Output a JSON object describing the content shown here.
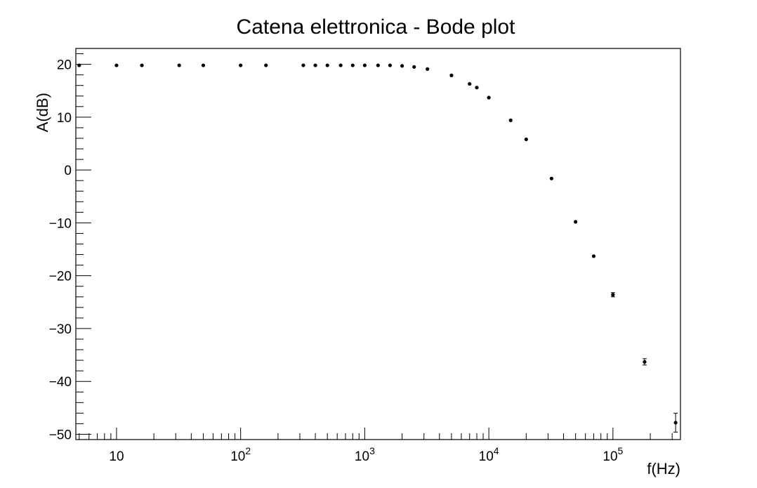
{
  "chart_data": {
    "type": "scatter",
    "title": "Catena elettronica - Bode plot",
    "xlabel": "f(Hz)",
    "ylabel": "A(dB)",
    "xscale": "log",
    "xlim": [
      4.7,
      350000
    ],
    "ylim": [
      -51,
      23
    ],
    "grid": false,
    "legend": "none",
    "x_tick_labels": [
      {
        "value": 10,
        "base": "10",
        "exp": ""
      },
      {
        "value": 100,
        "base": "10",
        "exp": "2"
      },
      {
        "value": 1000,
        "base": "10",
        "exp": "3"
      },
      {
        "value": 10000,
        "base": "10",
        "exp": "4"
      },
      {
        "value": 100000,
        "base": "10",
        "exp": "5"
      }
    ],
    "y_ticks": [
      20,
      10,
      0,
      -10,
      -20,
      -30,
      -40,
      -50
    ],
    "y_tick_labels": [
      "20",
      "10",
      "0",
      "−10",
      "−20",
      "−30",
      "−40",
      "−50"
    ],
    "series": [
      {
        "x": [
          5,
          10,
          16,
          32,
          50,
          100,
          160,
          320,
          400,
          500,
          640,
          800,
          1000,
          1280,
          1600,
          2000,
          2500,
          3200,
          5000,
          7000,
          8000,
          10000,
          15000,
          20000,
          32000,
          50000,
          70000,
          100000,
          180000,
          320000
        ],
        "y": [
          19.8,
          19.8,
          19.8,
          19.8,
          19.8,
          19.8,
          19.8,
          19.8,
          19.8,
          19.8,
          19.8,
          19.8,
          19.8,
          19.8,
          19.8,
          19.7,
          19.5,
          19.1,
          17.9,
          16.3,
          15.6,
          13.7,
          9.4,
          5.8,
          -1.6,
          -9.8,
          -16.3,
          -23.6,
          -36.3,
          -47.8
        ],
        "yerr": [
          0,
          0,
          0,
          0,
          0,
          0,
          0,
          0,
          0,
          0,
          0,
          0,
          0,
          0,
          0,
          0,
          0,
          0,
          0,
          0,
          0,
          0,
          0,
          0,
          0,
          0,
          0,
          0.4,
          0.6,
          1.8
        ]
      }
    ]
  }
}
